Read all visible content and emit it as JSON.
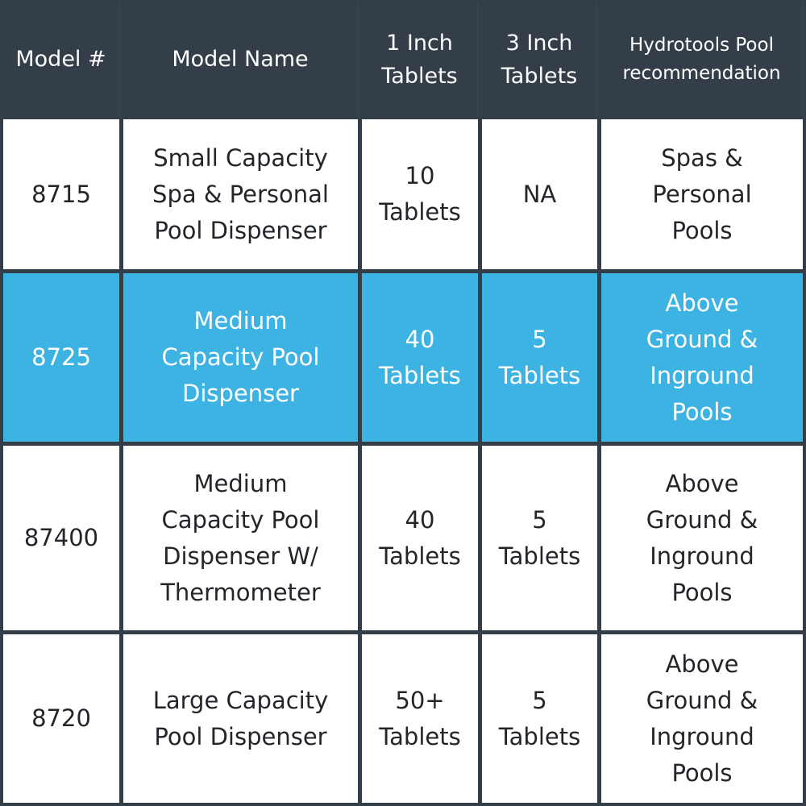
{
  "colors": {
    "header_bg": "#333e48",
    "highlight": "#3db3e3",
    "cell_bg": "#ffffff"
  },
  "headers": [
    "Model #",
    "Model Name",
    "1 Inch\nTablets",
    "3 Inch\nTablets",
    "Hydrotools Pool\nrecommendation"
  ],
  "rows": [
    {
      "model": "8715",
      "name": "Small Capacity\nSpa & Personal\nPool Dispenser",
      "one_inch": "10\nTablets",
      "three_inch": "NA",
      "recommendation": "Spas &\nPersonal\nPools",
      "highlighted": false
    },
    {
      "model": "8725",
      "name": "Medium\nCapacity Pool\nDispenser",
      "one_inch": "40\nTablets",
      "three_inch": "5\nTablets",
      "recommendation": "Above\nGround &\nInground\nPools",
      "highlighted": true
    },
    {
      "model": "87400",
      "name": "Medium\nCapacity Pool\nDispenser W/\nThermometer",
      "one_inch": "40\nTablets",
      "three_inch": "5\nTablets",
      "recommendation": "Above\nGround &\nInground\nPools",
      "highlighted": false
    },
    {
      "model": "8720",
      "name": "Large Capacity\nPool Dispenser",
      "one_inch": "50+\nTablets",
      "three_inch": "5\nTablets",
      "recommendation": "Above\nGround &\nInground\nPools",
      "highlighted": false
    }
  ]
}
